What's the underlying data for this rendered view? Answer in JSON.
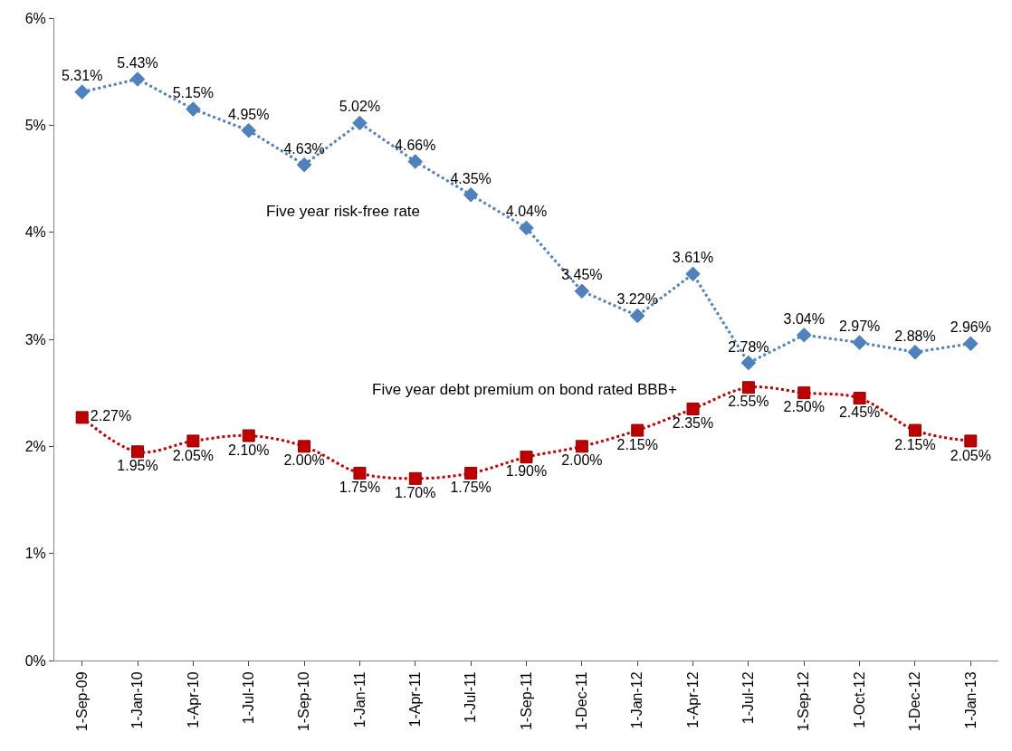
{
  "chart_data": {
    "type": "line",
    "categories": [
      "1-Sep-09",
      "1-Jan-10",
      "1-Apr-10",
      "1-Jul-10",
      "1-Sep-10",
      "1-Jan-11",
      "1-Apr-11",
      "1-Jul-11",
      "1-Sep-11",
      "1-Dec-11",
      "1-Jan-12",
      "1-Apr-12",
      "1-Jul-12",
      "1-Sep-12",
      "1-Oct-12",
      "1-Dec-12",
      "1-Jan-13"
    ],
    "series": [
      {
        "name": "Five year risk-free rate",
        "color": "#4f81bd",
        "marker": "diamond",
        "values": [
          5.31,
          5.43,
          5.15,
          4.95,
          4.63,
          5.02,
          4.66,
          4.35,
          4.04,
          3.45,
          3.22,
          3.61,
          2.78,
          3.04,
          2.97,
          2.88,
          2.96
        ],
        "value_labels": [
          "5.31%",
          "5.43%",
          "5.15%",
          "4.95%",
          "4.63%",
          "5.02%",
          "4.66%",
          "4.35%",
          "4.04%",
          "3.45%",
          "3.22%",
          "3.61%",
          "2.78%",
          "3.04%",
          "2.97%",
          "2.88%",
          "2.96%"
        ]
      },
      {
        "name": "Five year debt premium on bond rated BBB+",
        "color": "#c00000",
        "marker": "square",
        "values": [
          2.27,
          1.95,
          2.05,
          2.1,
          2.0,
          1.75,
          1.7,
          1.75,
          1.9,
          2.0,
          2.15,
          2.35,
          2.55,
          2.5,
          2.45,
          2.15,
          2.05
        ],
        "value_labels": [
          "2.27%",
          "1.95%",
          "2.05%",
          "2.10%",
          "2.00%",
          "1.75%",
          "1.70%",
          "1.75%",
          "1.90%",
          "2.00%",
          "2.15%",
          "2.35%",
          "2.55%",
          "2.50%",
          "2.45%",
          "2.15%",
          "2.05%"
        ]
      }
    ],
    "ylim": [
      0,
      6
    ],
    "yticks": [
      {
        "value": 0,
        "label": "0%"
      },
      {
        "value": 1,
        "label": "1%"
      },
      {
        "value": 2,
        "label": "2%"
      },
      {
        "value": 3,
        "label": "3%"
      },
      {
        "value": 4,
        "label": "4%"
      },
      {
        "value": 5,
        "label": "5%"
      },
      {
        "value": 6,
        "label": "6%"
      }
    ],
    "line_style": "dotted",
    "grid": false,
    "legend": false
  }
}
